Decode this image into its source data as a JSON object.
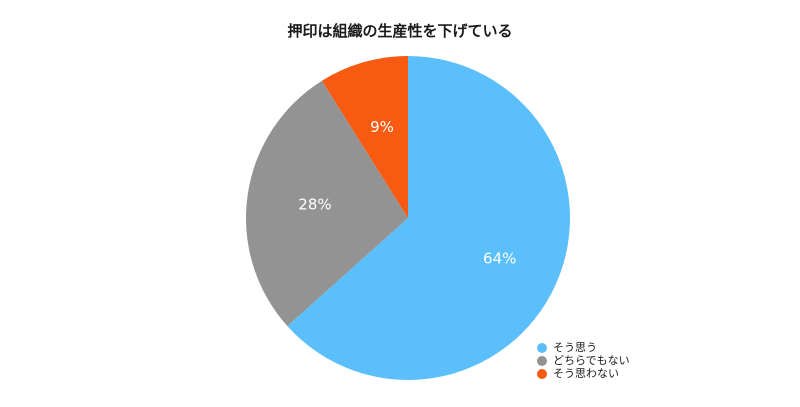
{
  "chart_data": {
    "type": "pie",
    "title": "押印は組織の生産性を下げている",
    "categories": [
      "そう思う",
      "どちらでもない",
      "そう思わない"
    ],
    "values": [
      64,
      28,
      9
    ],
    "labels": [
      "64%",
      "28%",
      "9%"
    ],
    "colors": [
      "#5bbffb",
      "#939393",
      "#f85a12"
    ],
    "legend_position": "bottom-right"
  }
}
